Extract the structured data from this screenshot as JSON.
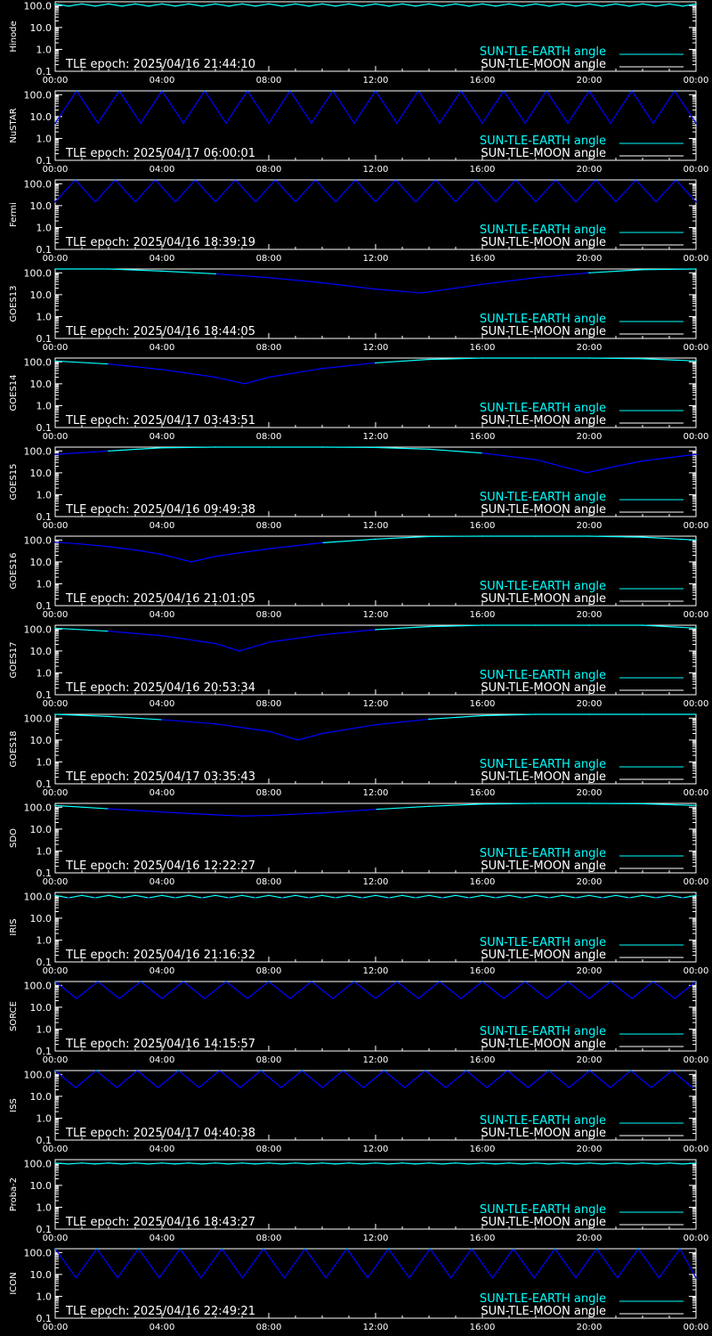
{
  "colors": {
    "background": "#000000",
    "axis": "#ffffff",
    "earth": "#00ffff",
    "sun_angle": "#0000ff",
    "moon": "#ffffff"
  },
  "legend": {
    "earth_label": "SUN-TLE-EARTH angle",
    "moon_label": "SUN-TLE-MOON angle"
  },
  "x_ticks": [
    "00:00",
    "04:00",
    "08:00",
    "12:00",
    "16:00",
    "20:00",
    "00:00"
  ],
  "y_ticks": [
    "100.0",
    "10.0",
    "1.0",
    "0.1"
  ],
  "chart_data": [
    {
      "type": "line",
      "satellite": "Hinode",
      "epoch": "TLE epoch: 2025/04/16 21:44:10",
      "y_scale": "log",
      "ylim": [
        0.1,
        150
      ],
      "xlim": [
        "00:00",
        "00:00"
      ],
      "series": [
        {
          "name": "SUN-TLE-EARTH angle",
          "x": [
            0,
            0.5,
            1,
            1.5,
            2,
            2.5,
            3,
            3.5,
            4,
            4.5,
            5,
            5.5,
            6,
            6.5,
            7,
            7.5,
            8,
            8.5,
            9,
            9.5,
            10,
            10.5,
            11,
            11.5,
            12,
            12.5,
            13,
            13.5,
            14,
            14.5,
            15,
            15.5,
            16,
            16.5,
            17,
            17.5,
            18,
            18.5,
            19,
            19.5,
            20,
            20.5,
            21,
            21.5,
            22,
            22.5,
            23,
            23.5,
            24
          ],
          "y": [
            120,
            95,
            120,
            95,
            120,
            95,
            120,
            95,
            120,
            95,
            120,
            95,
            120,
            95,
            120,
            95,
            120,
            95,
            120,
            95,
            120,
            95,
            120,
            95,
            120,
            95,
            120,
            95,
            120,
            95,
            120,
            95,
            120,
            95,
            120,
            95,
            120,
            95,
            120,
            95,
            120,
            95,
            120,
            95,
            120,
            95,
            120,
            95,
            120
          ]
        }
      ]
    },
    {
      "type": "line",
      "satellite": "NuSTAR",
      "epoch": "TLE epoch: 2025/04/17 06:00:01",
      "y_scale": "log",
      "ylim": [
        0.1,
        150
      ],
      "xlim": [
        "00:00",
        "00:00"
      ],
      "series": [
        {
          "name": "SUN-TLE-EARTH angle",
          "x": [
            0,
            0.8,
            1.6,
            2.4,
            3.2,
            4.0,
            4.8,
            5.6,
            6.4,
            7.2,
            8.0,
            8.8,
            9.6,
            10.4,
            11.2,
            12.0,
            12.8,
            13.6,
            14.4,
            15.2,
            16.0,
            16.8,
            17.6,
            18.4,
            19.2,
            20.0,
            20.8,
            21.6,
            22.4,
            23.2,
            24
          ],
          "y": [
            5,
            160,
            5,
            160,
            5,
            160,
            5,
            160,
            5,
            160,
            5,
            160,
            5,
            160,
            5,
            160,
            5,
            160,
            5,
            160,
            5,
            160,
            5,
            160,
            5,
            160,
            5,
            160,
            5,
            160,
            5
          ]
        }
      ]
    },
    {
      "type": "line",
      "satellite": "Fermi",
      "epoch": "TLE epoch: 2025/04/16 18:39:19",
      "y_scale": "log",
      "ylim": [
        0.1,
        150
      ],
      "xlim": [
        "00:00",
        "00:00"
      ],
      "series": [
        {
          "name": "SUN-TLE-EARTH angle",
          "x": [
            0,
            0.75,
            1.5,
            2.25,
            3.0,
            3.75,
            4.5,
            5.25,
            6.0,
            6.75,
            7.5,
            8.25,
            9.0,
            9.75,
            10.5,
            11.25,
            12.0,
            12.75,
            13.5,
            14.25,
            15.0,
            15.75,
            16.5,
            17.25,
            18.0,
            18.75,
            19.5,
            20.25,
            21.0,
            21.75,
            22.5,
            23.25,
            24
          ],
          "y": [
            15,
            150,
            15,
            150,
            15,
            150,
            15,
            150,
            15,
            150,
            15,
            150,
            15,
            150,
            15,
            150,
            15,
            150,
            15,
            150,
            15,
            150,
            15,
            150,
            15,
            150,
            15,
            150,
            15,
            150,
            15,
            150,
            15
          ]
        }
      ]
    },
    {
      "type": "line",
      "satellite": "GOES13",
      "epoch": "TLE epoch: 2025/04/16 18:44:05",
      "y_scale": "log",
      "ylim": [
        0.1,
        150
      ],
      "xlim": [
        "00:00",
        "00:00"
      ],
      "series": [
        {
          "name": "SUN-TLE-EARTH angle",
          "x": [
            0,
            2,
            4,
            6,
            8,
            10,
            12,
            13.7,
            16,
            18,
            20,
            22,
            24
          ],
          "y": [
            170,
            150,
            120,
            90,
            60,
            35,
            18,
            12,
            30,
            60,
            100,
            140,
            170
          ]
        }
      ]
    },
    {
      "type": "line",
      "satellite": "GOES14",
      "epoch": "TLE epoch: 2025/04/17 03:43:51",
      "y_scale": "log",
      "ylim": [
        0.1,
        150
      ],
      "xlim": [
        "00:00",
        "00:00"
      ],
      "series": [
        {
          "name": "SUN-TLE-EARTH angle",
          "x": [
            0,
            2,
            4,
            6,
            7.1,
            8,
            10,
            12,
            14,
            16,
            18,
            20,
            22,
            24
          ],
          "y": [
            110,
            80,
            45,
            20,
            10,
            20,
            50,
            90,
            130,
            160,
            170,
            160,
            140,
            110
          ]
        }
      ]
    },
    {
      "type": "line",
      "satellite": "GOES15",
      "epoch": "TLE epoch: 2025/04/16 09:49:38",
      "y_scale": "log",
      "ylim": [
        0.1,
        150
      ],
      "xlim": [
        "00:00",
        "00:00"
      ],
      "series": [
        {
          "name": "SUN-TLE-EARTH angle",
          "x": [
            0,
            2,
            4,
            6,
            8,
            10,
            12,
            14,
            16,
            18,
            19.9,
            21,
            22,
            23,
            24
          ],
          "y": [
            70,
            100,
            140,
            165,
            175,
            165,
            145,
            120,
            80,
            40,
            10,
            20,
            35,
            50,
            70
          ]
        }
      ]
    },
    {
      "type": "line",
      "satellite": "GOES16",
      "epoch": "TLE epoch: 2025/04/16 21:01:05",
      "y_scale": "log",
      "ylim": [
        0.1,
        150
      ],
      "xlim": [
        "00:00",
        "00:00"
      ],
      "series": [
        {
          "name": "SUN-TLE-EARTH angle",
          "x": [
            0,
            1,
            2,
            3,
            4,
            5.1,
            6,
            8,
            10,
            12,
            14,
            16,
            18,
            20,
            22,
            24
          ],
          "y": [
            80,
            65,
            50,
            35,
            22,
            10,
            18,
            40,
            75,
            110,
            145,
            170,
            175,
            160,
            135,
            100
          ]
        }
      ]
    },
    {
      "type": "line",
      "satellite": "GOES17",
      "epoch": "TLE epoch: 2025/04/16 20:53:34",
      "y_scale": "log",
      "ylim": [
        0.1,
        150
      ],
      "xlim": [
        "00:00",
        "00:00"
      ],
      "series": [
        {
          "name": "SUN-TLE-EARTH angle",
          "x": [
            0,
            2,
            4,
            6,
            6.9,
            8,
            10,
            12,
            14,
            16,
            18,
            20,
            22,
            24
          ],
          "y": [
            110,
            80,
            50,
            22,
            10,
            25,
            55,
            95,
            130,
            160,
            175,
            170,
            150,
            110
          ]
        }
      ]
    },
    {
      "type": "line",
      "satellite": "GOES18",
      "epoch": "TLE epoch: 2025/04/17 03:35:43",
      "y_scale": "log",
      "ylim": [
        0.1,
        150
      ],
      "xlim": [
        "00:00",
        "00:00"
      ],
      "series": [
        {
          "name": "SUN-TLE-EARTH angle",
          "x": [
            0,
            2,
            4,
            6,
            8,
            9.1,
            10,
            12,
            14,
            16,
            18,
            20,
            22,
            24
          ],
          "y": [
            150,
            120,
            85,
            55,
            25,
            10,
            20,
            50,
            90,
            130,
            160,
            175,
            170,
            150
          ]
        }
      ]
    },
    {
      "type": "line",
      "satellite": "SDO",
      "epoch": "TLE epoch: 2025/04/16 12:22:27",
      "y_scale": "log",
      "ylim": [
        0.1,
        150
      ],
      "xlim": [
        "00:00",
        "00:00"
      ],
      "series": [
        {
          "name": "SUN-TLE-EARTH angle",
          "x": [
            0,
            2,
            4,
            6,
            7,
            8,
            10,
            12,
            14,
            16,
            18,
            20,
            22,
            24
          ],
          "y": [
            120,
            85,
            60,
            45,
            40,
            42,
            55,
            80,
            110,
            140,
            160,
            160,
            145,
            120
          ]
        }
      ]
    },
    {
      "type": "line",
      "satellite": "IRIS",
      "epoch": "TLE epoch: 2025/04/16 21:16:32",
      "y_scale": "log",
      "ylim": [
        0.1,
        150
      ],
      "xlim": [
        "00:00",
        "00:00"
      ],
      "series": [
        {
          "name": "SUN-TLE-EARTH angle",
          "x": [
            0,
            0.5,
            1,
            1.5,
            2,
            2.5,
            3,
            3.5,
            4,
            4.5,
            5,
            5.5,
            6,
            6.5,
            7,
            7.5,
            8,
            8.5,
            9,
            9.5,
            10,
            10.5,
            11,
            11.5,
            12,
            12.5,
            13,
            13.5,
            14,
            14.5,
            15,
            15.5,
            16,
            16.5,
            17,
            17.5,
            18,
            18.5,
            19,
            19.5,
            20,
            20.5,
            21,
            21.5,
            22,
            22.5,
            23,
            23.5,
            24
          ],
          "y": [
            110,
            85,
            110,
            85,
            110,
            85,
            110,
            85,
            110,
            85,
            110,
            85,
            110,
            85,
            110,
            85,
            110,
            85,
            110,
            85,
            110,
            85,
            110,
            85,
            110,
            85,
            110,
            85,
            110,
            85,
            110,
            85,
            110,
            85,
            110,
            85,
            110,
            85,
            110,
            85,
            110,
            85,
            110,
            85,
            110,
            85,
            110,
            85,
            110
          ]
        }
      ]
    },
    {
      "type": "line",
      "satellite": "SORCE",
      "epoch": "TLE epoch: 2025/04/16 14:15:57",
      "y_scale": "log",
      "ylim": [
        0.1,
        150
      ],
      "xlim": [
        "00:00",
        "00:00"
      ],
      "series": [
        {
          "name": "SUN-TLE-EARTH angle",
          "x": [
            0,
            0.8,
            1.6,
            2.4,
            3.2,
            4.0,
            4.8,
            5.6,
            6.4,
            7.2,
            8.0,
            8.8,
            9.6,
            10.4,
            11.2,
            12.0,
            12.8,
            13.6,
            14.4,
            15.2,
            16.0,
            16.8,
            17.6,
            18.4,
            19.2,
            20.0,
            20.8,
            21.6,
            22.4,
            23.2,
            24
          ],
          "y": [
            150,
            25,
            150,
            25,
            150,
            25,
            150,
            25,
            150,
            25,
            150,
            25,
            150,
            25,
            150,
            25,
            150,
            25,
            150,
            25,
            150,
            25,
            150,
            25,
            150,
            25,
            150,
            25,
            150,
            25,
            150
          ]
        }
      ]
    },
    {
      "type": "line",
      "satellite": "ISS",
      "epoch": "TLE epoch: 2025/04/17 04:40:38",
      "y_scale": "log",
      "ylim": [
        0.1,
        150
      ],
      "xlim": [
        "00:00",
        "00:00"
      ],
      "series": [
        {
          "name": "SUN-TLE-EARTH angle",
          "x": [
            0,
            0.77,
            1.54,
            2.31,
            3.08,
            3.85,
            4.62,
            5.39,
            6.16,
            6.93,
            7.7,
            8.47,
            9.24,
            10.01,
            10.78,
            11.55,
            12.32,
            13.09,
            13.86,
            14.63,
            15.4,
            16.17,
            16.94,
            17.71,
            18.48,
            19.25,
            20.02,
            20.79,
            21.56,
            22.33,
            23.1,
            23.87
          ],
          "y": [
            150,
            25,
            150,
            25,
            150,
            25,
            150,
            25,
            150,
            25,
            150,
            25,
            150,
            25,
            150,
            25,
            150,
            25,
            150,
            25,
            150,
            25,
            150,
            25,
            150,
            25,
            150,
            25,
            150,
            25,
            150,
            25
          ]
        }
      ]
    },
    {
      "type": "line",
      "satellite": "Proba-2",
      "epoch": "TLE epoch: 2025/04/16 18:43:27",
      "y_scale": "log",
      "ylim": [
        0.1,
        150
      ],
      "xlim": [
        "00:00",
        "00:00"
      ],
      "series": [
        {
          "name": "SUN-TLE-EARTH angle",
          "x": [
            0,
            0.5,
            1,
            1.5,
            2,
            2.5,
            3,
            3.5,
            4,
            4.5,
            5,
            5.5,
            6,
            6.5,
            7,
            7.5,
            8,
            8.5,
            9,
            9.5,
            10,
            10.5,
            11,
            11.5,
            12,
            12.5,
            13,
            13.5,
            14,
            14.5,
            15,
            15.5,
            16,
            16.5,
            17,
            17.5,
            18,
            18.5,
            19,
            19.5,
            20,
            20.5,
            21,
            21.5,
            22,
            22.5,
            23,
            23.5,
            24
          ],
          "y": [
            105,
            95,
            105,
            95,
            105,
            95,
            105,
            95,
            105,
            95,
            105,
            95,
            105,
            95,
            105,
            95,
            105,
            95,
            105,
            95,
            105,
            95,
            105,
            95,
            105,
            95,
            105,
            95,
            105,
            95,
            105,
            95,
            105,
            95,
            105,
            95,
            105,
            95,
            105,
            95,
            105,
            95,
            105,
            95,
            105,
            95,
            105,
            95,
            105
          ]
        }
      ]
    },
    {
      "type": "line",
      "satellite": "ICON",
      "epoch": "TLE epoch: 2025/04/16 22:49:21",
      "y_scale": "log",
      "ylim": [
        0.1,
        150
      ],
      "xlim": [
        "00:00",
        "00:00"
      ],
      "series": [
        {
          "name": "SUN-TLE-EARTH angle",
          "x": [
            0,
            0.78,
            1.56,
            2.34,
            3.12,
            3.9,
            4.68,
            5.46,
            6.24,
            7.02,
            7.8,
            8.58,
            9.36,
            10.14,
            10.92,
            11.7,
            12.48,
            13.26,
            14.04,
            14.82,
            15.6,
            16.38,
            17.16,
            17.94,
            18.72,
            19.5,
            20.28,
            21.06,
            21.84,
            22.62,
            23.4,
            24
          ],
          "y": [
            150,
            7,
            150,
            7,
            150,
            7,
            150,
            7,
            150,
            7,
            150,
            7,
            150,
            7,
            150,
            7,
            150,
            7,
            150,
            7,
            150,
            7,
            150,
            7,
            150,
            7,
            150,
            7,
            150,
            7,
            150,
            7
          ]
        }
      ]
    }
  ]
}
